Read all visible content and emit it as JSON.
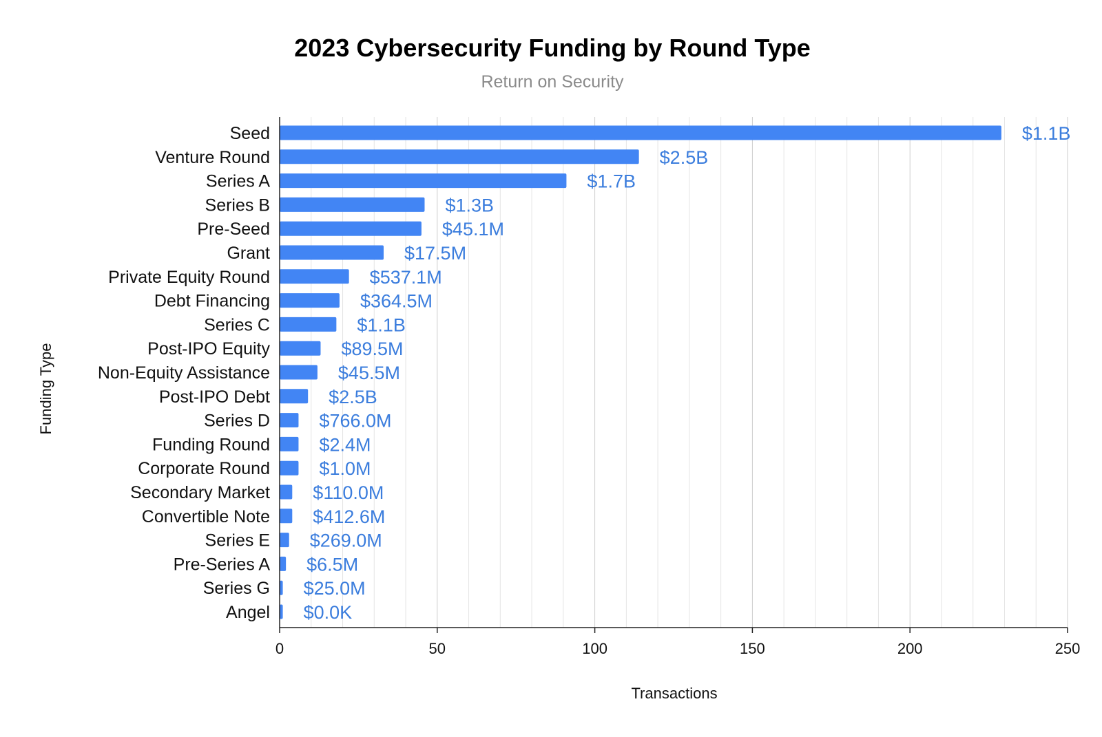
{
  "chart_data": {
    "type": "bar",
    "orientation": "horizontal",
    "title": "2023 Cybersecurity Funding by Round Type",
    "subtitle": "Return on Security",
    "xlabel": "Transactions",
    "ylabel": "Funding Type",
    "xlim": [
      0,
      250
    ],
    "xticks": [
      "0",
      "50",
      "100",
      "150",
      "200",
      "250"
    ],
    "grid": true,
    "legend": "none",
    "bar_color": "#4285f4",
    "label_color": "#3b7ddd",
    "categories": [
      "Seed",
      "Venture Round",
      "Series A",
      "Series B",
      "Pre-Seed",
      "Grant",
      "Private Equity Round",
      "Debt Financing",
      "Series C",
      "Post-IPO Equity",
      "Non-Equity Assistance",
      "Post-IPO Debt",
      "Series D",
      "Funding Round",
      "Corporate Round",
      "Secondary Market",
      "Convertible Note",
      "Series E",
      "Pre-Series A",
      "Series G",
      "Angel"
    ],
    "values": [
      229,
      114,
      91,
      46,
      45,
      33,
      22,
      19,
      18,
      13,
      12,
      9,
      6,
      6,
      6,
      4,
      4,
      3,
      2,
      1,
      1
    ],
    "data_labels": [
      "$1.1B",
      "$2.5B",
      "$1.7B",
      "$1.3B",
      "$45.1M",
      "$17.5M",
      "$537.1M",
      "$364.5M",
      "$1.1B",
      "$89.5M",
      "$45.5M",
      "$2.5B",
      "$766.0M",
      "$2.4M",
      "$1.0M",
      "$110.0M",
      "$412.6M",
      "$269.0M",
      "$6.5M",
      "$25.0M",
      "$0.0K"
    ]
  }
}
